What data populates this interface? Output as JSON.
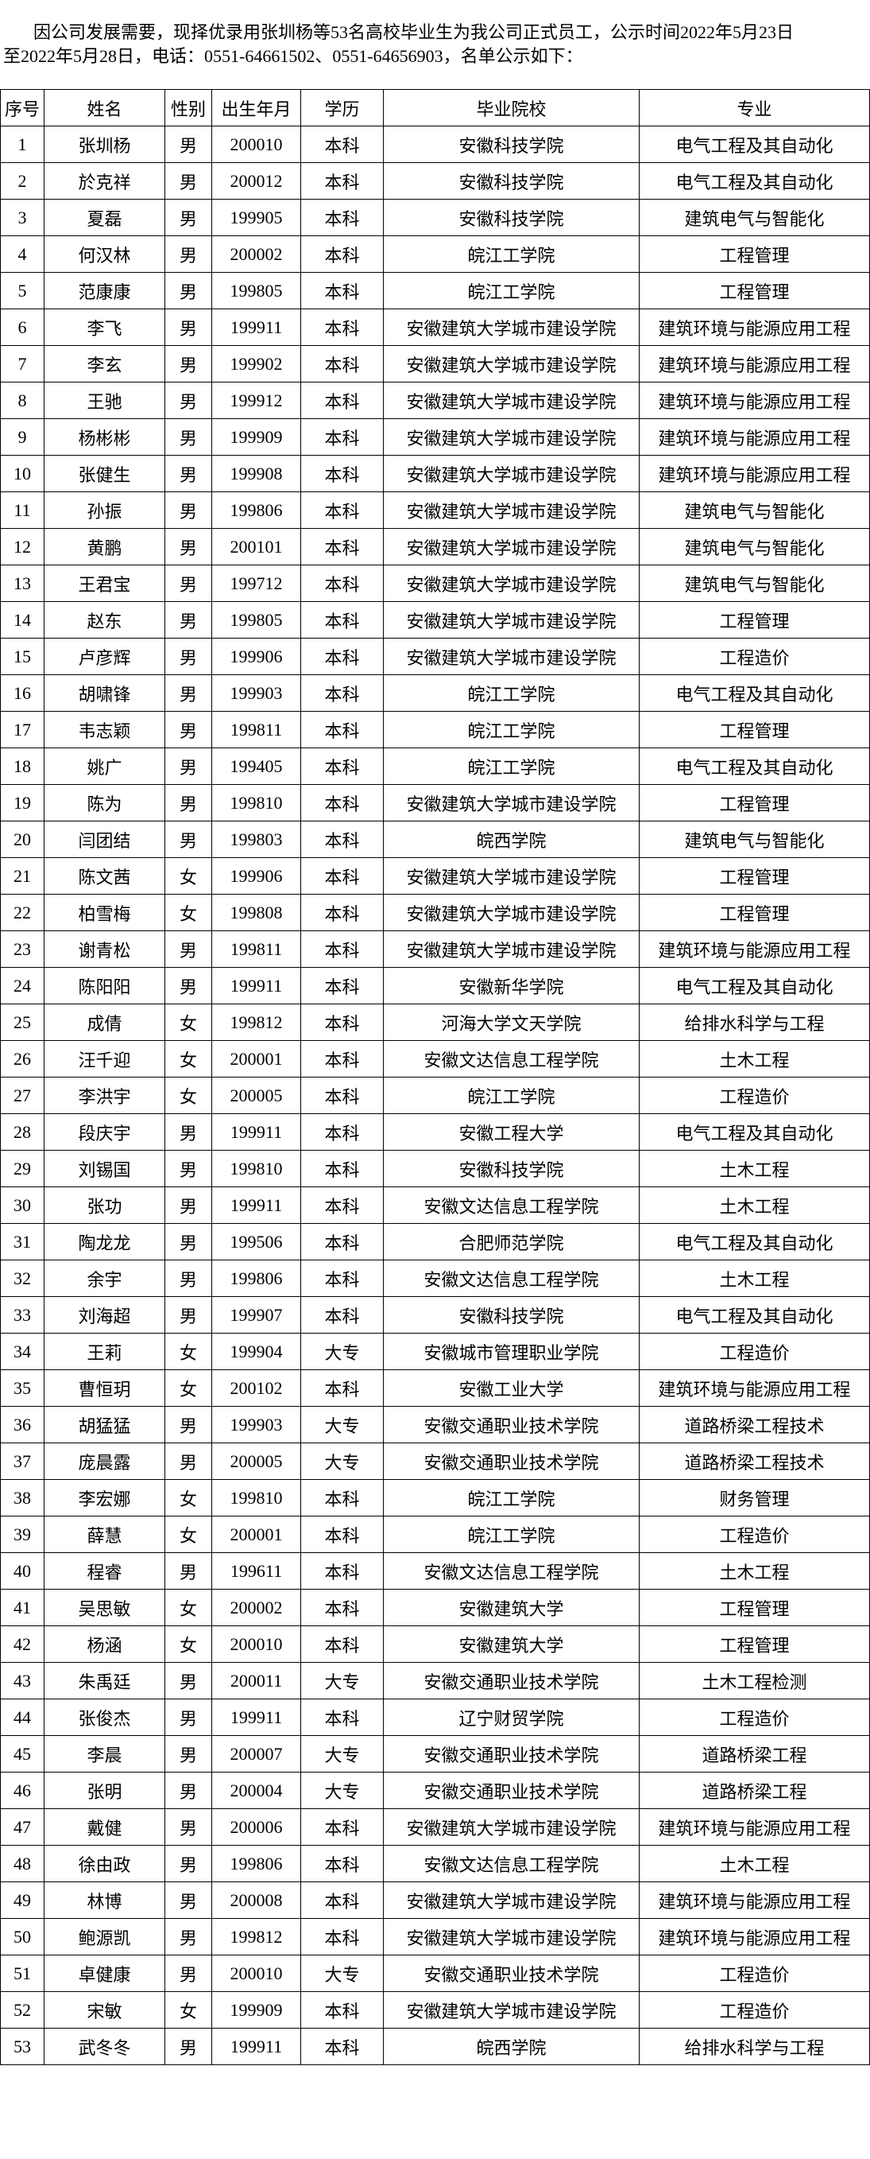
{
  "intro_lines": [
    "因公司发展需要，现择优录用张圳杨等53名高校毕业生为我公司正式员工，公示时间2022年5月23日",
    "至2022年5月28日，电话：0551-64661502、0551-64656903，名单公示如下："
  ],
  "table": {
    "headers": [
      "序号",
      "姓名",
      "性别",
      "出生年月",
      "学历",
      "毕业院校",
      "专业"
    ],
    "rows": [
      [
        "1",
        "张圳杨",
        "男",
        "200010",
        "本科",
        "安徽科技学院",
        "电气工程及其自动化"
      ],
      [
        "2",
        "於克祥",
        "男",
        "200012",
        "本科",
        "安徽科技学院",
        "电气工程及其自动化"
      ],
      [
        "3",
        "夏磊",
        "男",
        "199905",
        "本科",
        "安徽科技学院",
        "建筑电气与智能化"
      ],
      [
        "4",
        "何汉林",
        "男",
        "200002",
        "本科",
        "皖江工学院",
        "工程管理"
      ],
      [
        "5",
        "范康康",
        "男",
        "199805",
        "本科",
        "皖江工学院",
        "工程管理"
      ],
      [
        "6",
        "李飞",
        "男",
        "199911",
        "本科",
        "安徽建筑大学城市建设学院",
        "建筑环境与能源应用工程"
      ],
      [
        "7",
        "李玄",
        "男",
        "199902",
        "本科",
        "安徽建筑大学城市建设学院",
        "建筑环境与能源应用工程"
      ],
      [
        "8",
        "王驰",
        "男",
        "199912",
        "本科",
        "安徽建筑大学城市建设学院",
        "建筑环境与能源应用工程"
      ],
      [
        "9",
        "杨彬彬",
        "男",
        "199909",
        "本科",
        "安徽建筑大学城市建设学院",
        "建筑环境与能源应用工程"
      ],
      [
        "10",
        "张健生",
        "男",
        "199908",
        "本科",
        "安徽建筑大学城市建设学院",
        "建筑环境与能源应用工程"
      ],
      [
        "11",
        "孙振",
        "男",
        "199806",
        "本科",
        "安徽建筑大学城市建设学院",
        "建筑电气与智能化"
      ],
      [
        "12",
        "黄鹏",
        "男",
        "200101",
        "本科",
        "安徽建筑大学城市建设学院",
        "建筑电气与智能化"
      ],
      [
        "13",
        "王君宝",
        "男",
        "199712",
        "本科",
        "安徽建筑大学城市建设学院",
        "建筑电气与智能化"
      ],
      [
        "14",
        "赵东",
        "男",
        "199805",
        "本科",
        "安徽建筑大学城市建设学院",
        "工程管理"
      ],
      [
        "15",
        "卢彦辉",
        "男",
        "199906",
        "本科",
        "安徽建筑大学城市建设学院",
        "工程造价"
      ],
      [
        "16",
        "胡啸锋",
        "男",
        "199903",
        "本科",
        "皖江工学院",
        "电气工程及其自动化"
      ],
      [
        "17",
        "韦志颖",
        "男",
        "199811",
        "本科",
        "皖江工学院",
        "工程管理"
      ],
      [
        "18",
        "姚广",
        "男",
        "199405",
        "本科",
        "皖江工学院",
        "电气工程及其自动化"
      ],
      [
        "19",
        "陈为",
        "男",
        "199810",
        "本科",
        "安徽建筑大学城市建设学院",
        "工程管理"
      ],
      [
        "20",
        "闫团结",
        "男",
        "199803",
        "本科",
        "皖西学院",
        "建筑电气与智能化"
      ],
      [
        "21",
        "陈文茜",
        "女",
        "199906",
        "本科",
        "安徽建筑大学城市建设学院",
        "工程管理"
      ],
      [
        "22",
        "柏雪梅",
        "女",
        "199808",
        "本科",
        "安徽建筑大学城市建设学院",
        "工程管理"
      ],
      [
        "23",
        "谢青松",
        "男",
        "199811",
        "本科",
        "安徽建筑大学城市建设学院",
        "建筑环境与能源应用工程"
      ],
      [
        "24",
        "陈阳阳",
        "男",
        "199911",
        "本科",
        "安徽新华学院",
        "电气工程及其自动化"
      ],
      [
        "25",
        "成倩",
        "女",
        "199812",
        "本科",
        "河海大学文天学院",
        "给排水科学与工程"
      ],
      [
        "26",
        "汪千迎",
        "女",
        "200001",
        "本科",
        "安徽文达信息工程学院",
        "土木工程"
      ],
      [
        "27",
        "李洪宇",
        "女",
        "200005",
        "本科",
        "皖江工学院",
        "工程造价"
      ],
      [
        "28",
        "段庆宇",
        "男",
        "199911",
        "本科",
        "安徽工程大学",
        "电气工程及其自动化"
      ],
      [
        "29",
        "刘锡国",
        "男",
        "199810",
        "本科",
        "安徽科技学院",
        "土木工程"
      ],
      [
        "30",
        "张功",
        "男",
        "199911",
        "本科",
        "安徽文达信息工程学院",
        "土木工程"
      ],
      [
        "31",
        "陶龙龙",
        "男",
        "199506",
        "本科",
        "合肥师范学院",
        "电气工程及其自动化"
      ],
      [
        "32",
        "余宇",
        "男",
        "199806",
        "本科",
        "安徽文达信息工程学院",
        "土木工程"
      ],
      [
        "33",
        "刘海超",
        "男",
        "199907",
        "本科",
        "安徽科技学院",
        "电气工程及其自动化"
      ],
      [
        "34",
        "王莉",
        "女",
        "199904",
        "大专",
        "安徽城市管理职业学院",
        "工程造价"
      ],
      [
        "35",
        "曹恒玥",
        "女",
        "200102",
        "本科",
        "安徽工业大学",
        "建筑环境与能源应用工程"
      ],
      [
        "36",
        "胡猛猛",
        "男",
        "199903",
        "大专",
        "安徽交通职业技术学院",
        "道路桥梁工程技术"
      ],
      [
        "37",
        "庞晨露",
        "男",
        "200005",
        "大专",
        "安徽交通职业技术学院",
        "道路桥梁工程技术"
      ],
      [
        "38",
        "李宏娜",
        "女",
        "199810",
        "本科",
        "皖江工学院",
        "财务管理"
      ],
      [
        "39",
        "薛慧",
        "女",
        "200001",
        "本科",
        "皖江工学院",
        "工程造价"
      ],
      [
        "40",
        "程睿",
        "男",
        "199611",
        "本科",
        "安徽文达信息工程学院",
        "土木工程"
      ],
      [
        "41",
        "吴思敏",
        "女",
        "200002",
        "本科",
        "安徽建筑大学",
        "工程管理"
      ],
      [
        "42",
        "杨涵",
        "女",
        "200010",
        "本科",
        "安徽建筑大学",
        "工程管理"
      ],
      [
        "43",
        "朱禹廷",
        "男",
        "200011",
        "大专",
        "安徽交通职业技术学院",
        "土木工程检测"
      ],
      [
        "44",
        "张俊杰",
        "男",
        "199911",
        "本科",
        "辽宁财贸学院",
        "工程造价"
      ],
      [
        "45",
        "李晨",
        "男",
        "200007",
        "大专",
        "安徽交通职业技术学院",
        "道路桥梁工程"
      ],
      [
        "46",
        "张明",
        "男",
        "200004",
        "大专",
        "安徽交通职业技术学院",
        "道路桥梁工程"
      ],
      [
        "47",
        "戴健",
        "男",
        "200006",
        "本科",
        "安徽建筑大学城市建设学院",
        "建筑环境与能源应用工程"
      ],
      [
        "48",
        "徐由政",
        "男",
        "199806",
        "本科",
        "安徽文达信息工程学院",
        "土木工程"
      ],
      [
        "49",
        "林博",
        "男",
        "200008",
        "本科",
        "安徽建筑大学城市建设学院",
        "建筑环境与能源应用工程"
      ],
      [
        "50",
        "鲍源凯",
        "男",
        "199812",
        "本科",
        "安徽建筑大学城市建设学院",
        "建筑环境与能源应用工程"
      ],
      [
        "51",
        "卓健康",
        "男",
        "200010",
        "大专",
        "安徽交通职业技术学院",
        "工程造价"
      ],
      [
        "52",
        "宋敏",
        "女",
        "199909",
        "本科",
        "安徽建筑大学城市建设学院",
        "工程造价"
      ],
      [
        "53",
        "武冬冬",
        "男",
        "199911",
        "本科",
        "皖西学院",
        "给排水科学与工程"
      ]
    ]
  }
}
